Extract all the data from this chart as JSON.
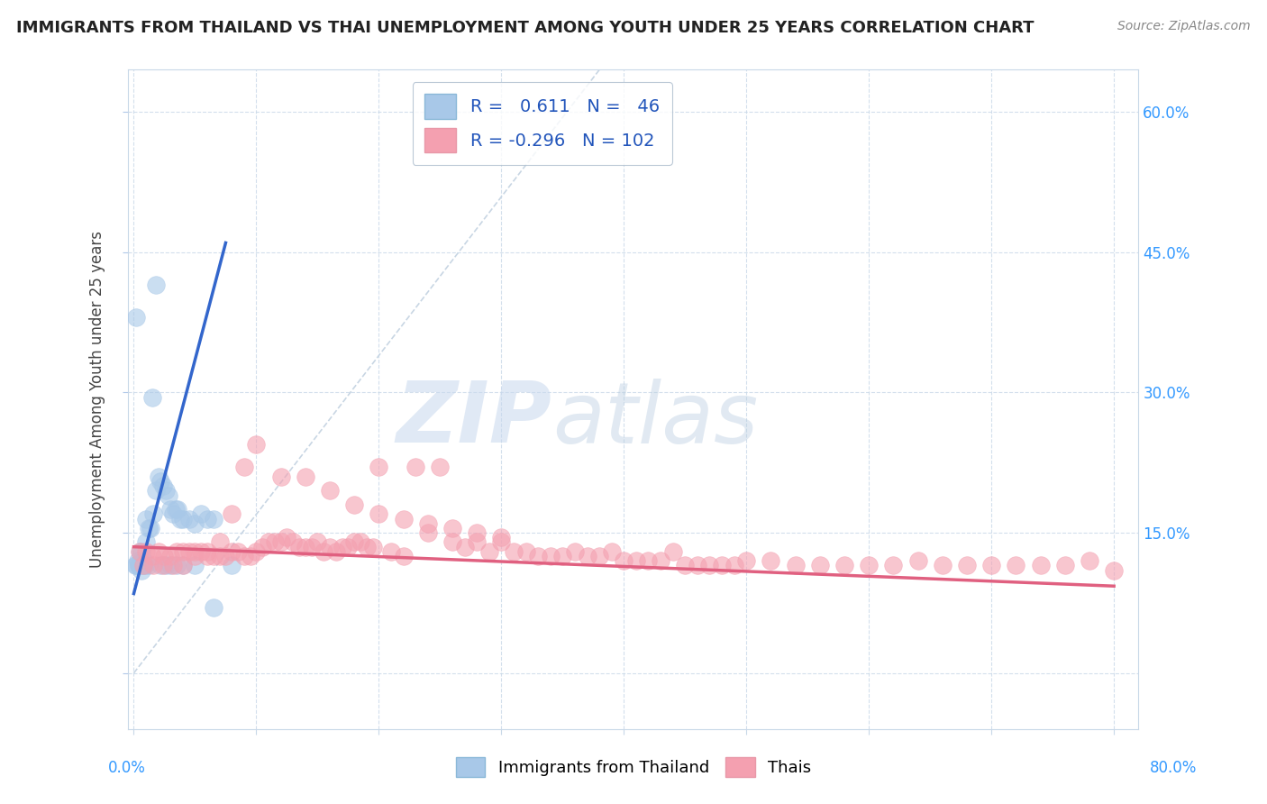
{
  "title": "IMMIGRANTS FROM THAILAND VS THAI UNEMPLOYMENT AMONG YOUTH UNDER 25 YEARS CORRELATION CHART",
  "source": "Source: ZipAtlas.com",
  "ylabel": "Unemployment Among Youth under 25 years",
  "y_ticks": [
    0.0,
    0.15,
    0.3,
    0.45,
    0.6
  ],
  "y_tick_labels_right": [
    "",
    "15.0%",
    "30.0%",
    "45.0%",
    "60.0%"
  ],
  "x_ticks": [
    0.0,
    0.1,
    0.2,
    0.3,
    0.4,
    0.5,
    0.6,
    0.7,
    0.8
  ],
  "xlim": [
    -0.005,
    0.82
  ],
  "ylim": [
    -0.06,
    0.645
  ],
  "color_blue": "#A8C8E8",
  "color_pink": "#F4A0B0",
  "color_blue_line": "#3366cc",
  "color_pink_line": "#e06080",
  "watermark_zip": "ZIP",
  "watermark_atlas": "atlas",
  "blue_scatter_x": [
    0.001,
    0.002,
    0.003,
    0.004,
    0.005,
    0.006,
    0.007,
    0.008,
    0.009,
    0.01,
    0.012,
    0.014,
    0.016,
    0.018,
    0.02,
    0.022,
    0.024,
    0.026,
    0.028,
    0.03,
    0.032,
    0.034,
    0.036,
    0.038,
    0.04,
    0.045,
    0.05,
    0.055,
    0.06,
    0.065,
    0.002,
    0.004,
    0.006,
    0.008,
    0.01,
    0.012,
    0.015,
    0.018,
    0.022,
    0.026,
    0.03,
    0.035,
    0.04,
    0.05,
    0.065,
    0.08
  ],
  "blue_scatter_y": [
    0.115,
    0.115,
    0.12,
    0.115,
    0.13,
    0.11,
    0.115,
    0.12,
    0.115,
    0.165,
    0.155,
    0.155,
    0.17,
    0.195,
    0.21,
    0.205,
    0.2,
    0.195,
    0.19,
    0.175,
    0.17,
    0.175,
    0.175,
    0.165,
    0.165,
    0.165,
    0.16,
    0.17,
    0.165,
    0.165,
    0.38,
    0.115,
    0.13,
    0.115,
    0.14,
    0.115,
    0.295,
    0.415,
    0.115,
    0.115,
    0.115,
    0.115,
    0.115,
    0.115,
    0.07,
    0.115
  ],
  "pink_scatter_x": [
    0.005,
    0.01,
    0.015,
    0.02,
    0.025,
    0.03,
    0.035,
    0.04,
    0.045,
    0.05,
    0.055,
    0.06,
    0.065,
    0.07,
    0.075,
    0.08,
    0.085,
    0.09,
    0.095,
    0.1,
    0.105,
    0.11,
    0.115,
    0.12,
    0.125,
    0.13,
    0.135,
    0.14,
    0.145,
    0.15,
    0.155,
    0.16,
    0.165,
    0.17,
    0.175,
    0.18,
    0.185,
    0.19,
    0.195,
    0.2,
    0.21,
    0.22,
    0.23,
    0.24,
    0.25,
    0.26,
    0.27,
    0.28,
    0.29,
    0.3,
    0.31,
    0.32,
    0.33,
    0.34,
    0.35,
    0.36,
    0.37,
    0.38,
    0.39,
    0.4,
    0.41,
    0.42,
    0.43,
    0.44,
    0.45,
    0.46,
    0.47,
    0.48,
    0.49,
    0.5,
    0.52,
    0.54,
    0.56,
    0.58,
    0.6,
    0.62,
    0.64,
    0.66,
    0.68,
    0.7,
    0.72,
    0.74,
    0.76,
    0.78,
    0.8,
    0.008,
    0.016,
    0.024,
    0.032,
    0.04,
    0.05,
    0.06,
    0.07,
    0.08,
    0.09,
    0.1,
    0.12,
    0.14,
    0.16,
    0.18,
    0.2,
    0.22,
    0.24,
    0.26,
    0.28,
    0.3
  ],
  "pink_scatter_y": [
    0.13,
    0.13,
    0.125,
    0.13,
    0.125,
    0.125,
    0.13,
    0.13,
    0.13,
    0.13,
    0.13,
    0.125,
    0.125,
    0.125,
    0.125,
    0.13,
    0.13,
    0.125,
    0.125,
    0.13,
    0.135,
    0.14,
    0.14,
    0.14,
    0.145,
    0.14,
    0.135,
    0.135,
    0.135,
    0.14,
    0.13,
    0.135,
    0.13,
    0.135,
    0.135,
    0.14,
    0.14,
    0.135,
    0.135,
    0.22,
    0.13,
    0.125,
    0.22,
    0.15,
    0.22,
    0.14,
    0.135,
    0.14,
    0.13,
    0.14,
    0.13,
    0.13,
    0.125,
    0.125,
    0.125,
    0.13,
    0.125,
    0.125,
    0.13,
    0.12,
    0.12,
    0.12,
    0.12,
    0.13,
    0.115,
    0.115,
    0.115,
    0.115,
    0.115,
    0.12,
    0.12,
    0.115,
    0.115,
    0.115,
    0.115,
    0.115,
    0.12,
    0.115,
    0.115,
    0.115,
    0.115,
    0.115,
    0.115,
    0.12,
    0.11,
    0.115,
    0.115,
    0.115,
    0.115,
    0.115,
    0.125,
    0.13,
    0.14,
    0.17,
    0.22,
    0.245,
    0.21,
    0.21,
    0.195,
    0.18,
    0.17,
    0.165,
    0.16,
    0.155,
    0.15,
    0.145
  ],
  "blue_trend_x0": 0.0,
  "blue_trend_y0": 0.085,
  "blue_trend_x1": 0.075,
  "blue_trend_y1": 0.46,
  "pink_trend_x0": 0.0,
  "pink_trend_y0": 0.135,
  "pink_trend_x1": 0.8,
  "pink_trend_y1": 0.093,
  "ref_line_x0": 0.0,
  "ref_line_y0": 0.0,
  "ref_line_x1": 0.38,
  "ref_line_y1": 0.645
}
